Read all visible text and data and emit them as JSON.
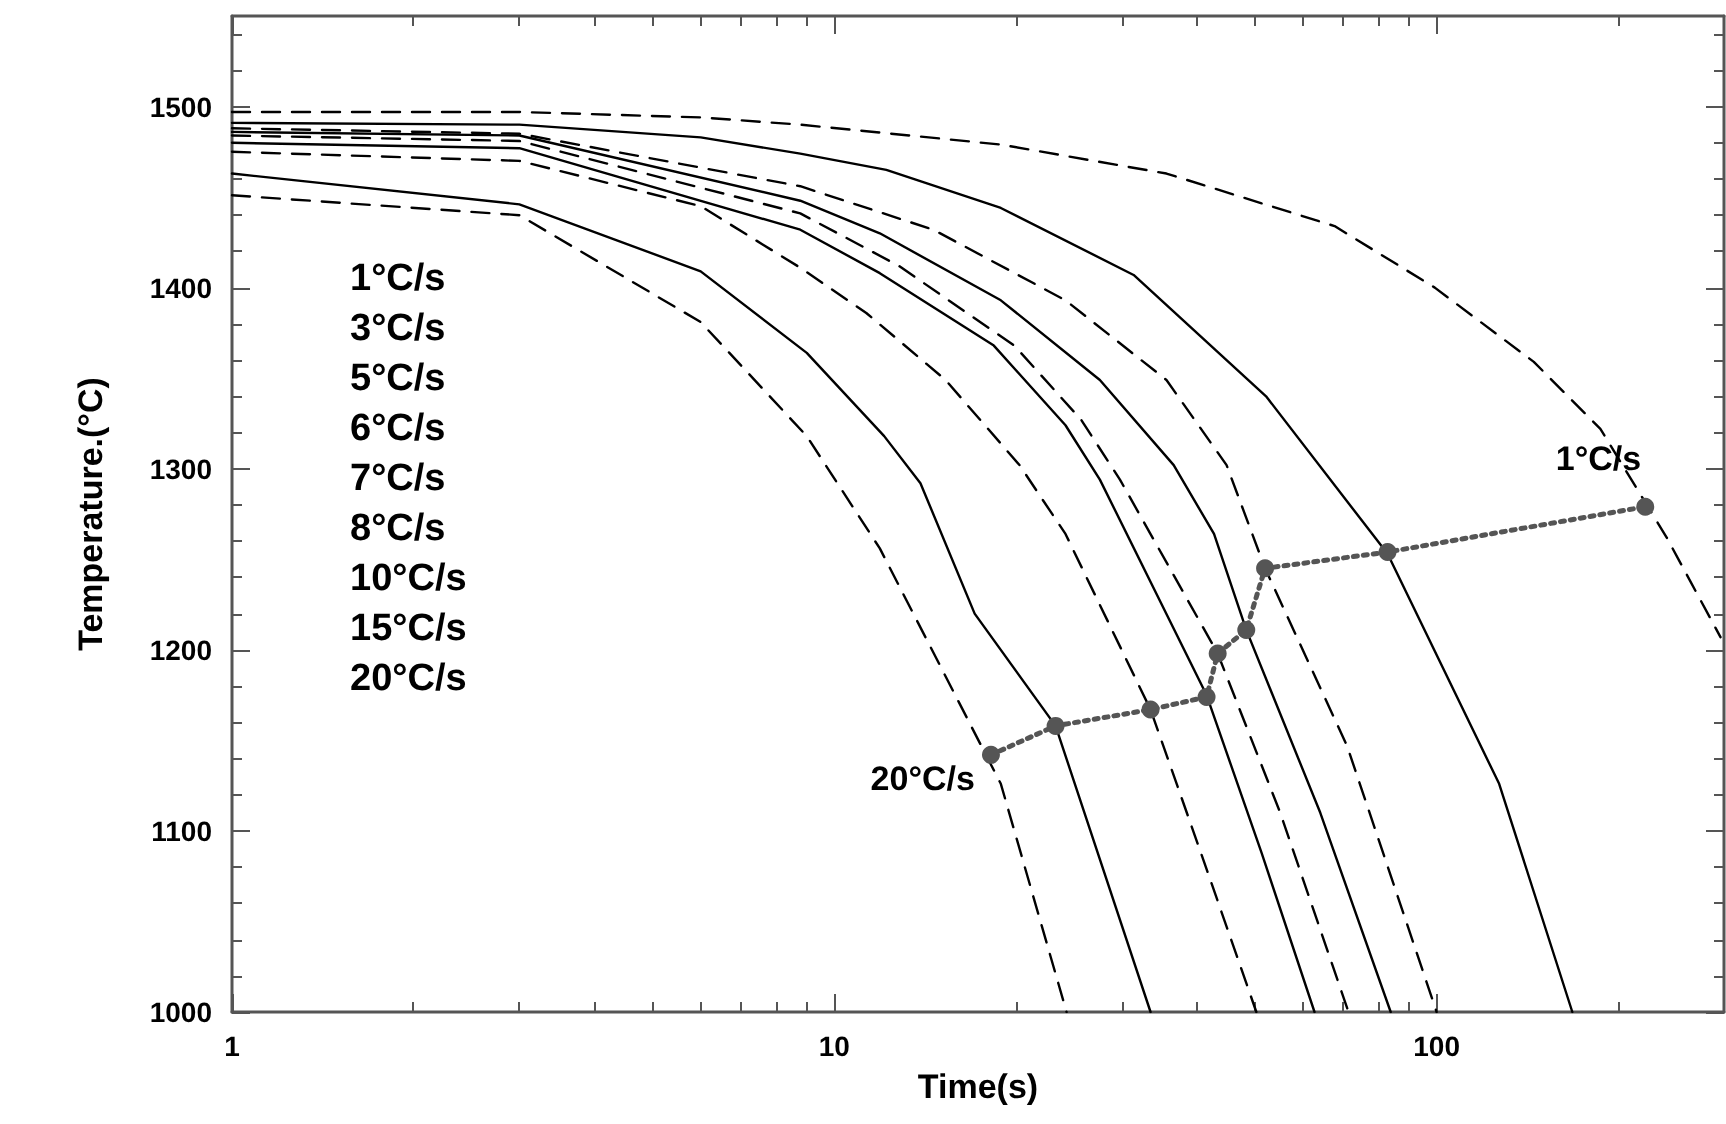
{
  "chart_data": {
    "type": "line",
    "xlabel": "Time(s)",
    "ylabel": "Temperature.(°C)",
    "log": "x",
    "xlim": [
      1,
      300
    ],
    "xticks": [
      1,
      10,
      100
    ],
    "ylim": [
      1000,
      1550
    ],
    "yticks": [
      1000,
      1100,
      1200,
      1300,
      1400,
      1500
    ],
    "grid": false,
    "marker": "none",
    "annotations": [
      "1°C/s",
      "3°C/s",
      "5°C/s",
      "6°C/s",
      "7°C/s",
      "8°C/s",
      "10°C/s",
      "15°C/s",
      "20°C/s",
      {
        "text": "1°C/s",
        "x": 222,
        "y": 1279
      },
      {
        "text": "20°C/s",
        "x": 18.2,
        "y": 1142
      }
    ],
    "series": [
      {
        "color": "#000000",
        "line_style": "dashed",
        "x": [
          1,
          3,
          6,
          8.78,
          18.9,
          35.6,
          67.7,
          99.3,
          145,
          187,
          241,
          296
        ],
        "values": [
          1497,
          1497,
          1494,
          1490,
          1479,
          1463,
          1434,
          1400,
          1359,
          1322,
          1262,
          1207
        ]
      },
      {
        "color": "#000000",
        "line_style": "solid",
        "x": [
          1,
          3,
          6,
          8.78,
          12.2,
          18.9,
          31.4,
          52.1,
          82.9,
          127,
          168
        ],
        "values": [
          1491,
          1490,
          1483,
          1474,
          1465,
          1444,
          1407,
          1340,
          1253,
          1126,
          1000
        ]
      },
      {
        "color": "#000000",
        "line_style": "dashed",
        "x": [
          1,
          3,
          8.78,
          14.6,
          24.2,
          35.6,
          44.8,
          51.9,
          71,
          100
        ],
        "values": [
          1488,
          1485,
          1456,
          1432,
          1393,
          1349,
          1302,
          1245,
          1147,
          1000
        ]
      },
      {
        "color": "#000000",
        "line_style": "solid",
        "x": [
          1,
          3,
          8.78,
          11.9,
          18.9,
          27.6,
          36.6,
          42.7,
          48.3,
          64.1,
          83.9
        ],
        "values": [
          1486,
          1484,
          1448,
          1430,
          1393,
          1349,
          1302,
          1264,
          1211,
          1110,
          1000
        ]
      },
      {
        "color": "#000000",
        "line_style": "dashed",
        "x": [
          1,
          3,
          8.78,
          12.8,
          19.9,
          25.7,
          29.8,
          43.3,
          55,
          71.4
        ],
        "values": [
          1484,
          1481,
          1441,
          1412,
          1368,
          1327,
          1294,
          1198,
          1110,
          1000
        ]
      },
      {
        "color": "#000000",
        "line_style": "solid",
        "x": [
          1,
          3,
          8.78,
          11.9,
          18.4,
          24.2,
          27.6,
          41.5,
          51.2,
          62.7
        ],
        "values": [
          1480,
          1477,
          1432,
          1408,
          1368,
          1324,
          1294,
          1175,
          1088,
          1000
        ]
      },
      {
        "color": "#000000",
        "line_style": "dashed",
        "x": [
          1,
          3,
          6,
          8.78,
          11.3,
          15.3,
          20.3,
          24.2,
          33.5,
          40.6,
          50.2
        ],
        "values": [
          1475,
          1470,
          1445,
          1411,
          1386,
          1349,
          1302,
          1264,
          1167,
          1088,
          1000
        ]
      },
      {
        "color": "#000000",
        "line_style": "solid",
        "x": [
          1,
          3,
          6,
          9,
          12.1,
          13.9,
          17.1,
          23.3,
          33.5
        ],
        "values": [
          1463,
          1446,
          1409,
          1364,
          1318,
          1292,
          1220,
          1158,
          1000
        ]
      },
      {
        "color": "#000000",
        "line_style": "dashed",
        "x": [
          1,
          3,
          6,
          9,
          11.9,
          18.9,
          24.3
        ],
        "values": [
          1451,
          1440,
          1381,
          1318,
          1256,
          1126,
          1000
        ]
      },
      {
        "color": "#555555",
        "line_style": "dotted",
        "marker": "circle",
        "x": [
          18.2,
          23.3,
          33.5,
          41.5,
          43.3,
          48.3,
          51.9,
          82.9,
          222
        ],
        "values": [
          1142,
          1158,
          1167,
          1174,
          1198,
          1211,
          1245,
          1254,
          1279
        ]
      }
    ]
  }
}
